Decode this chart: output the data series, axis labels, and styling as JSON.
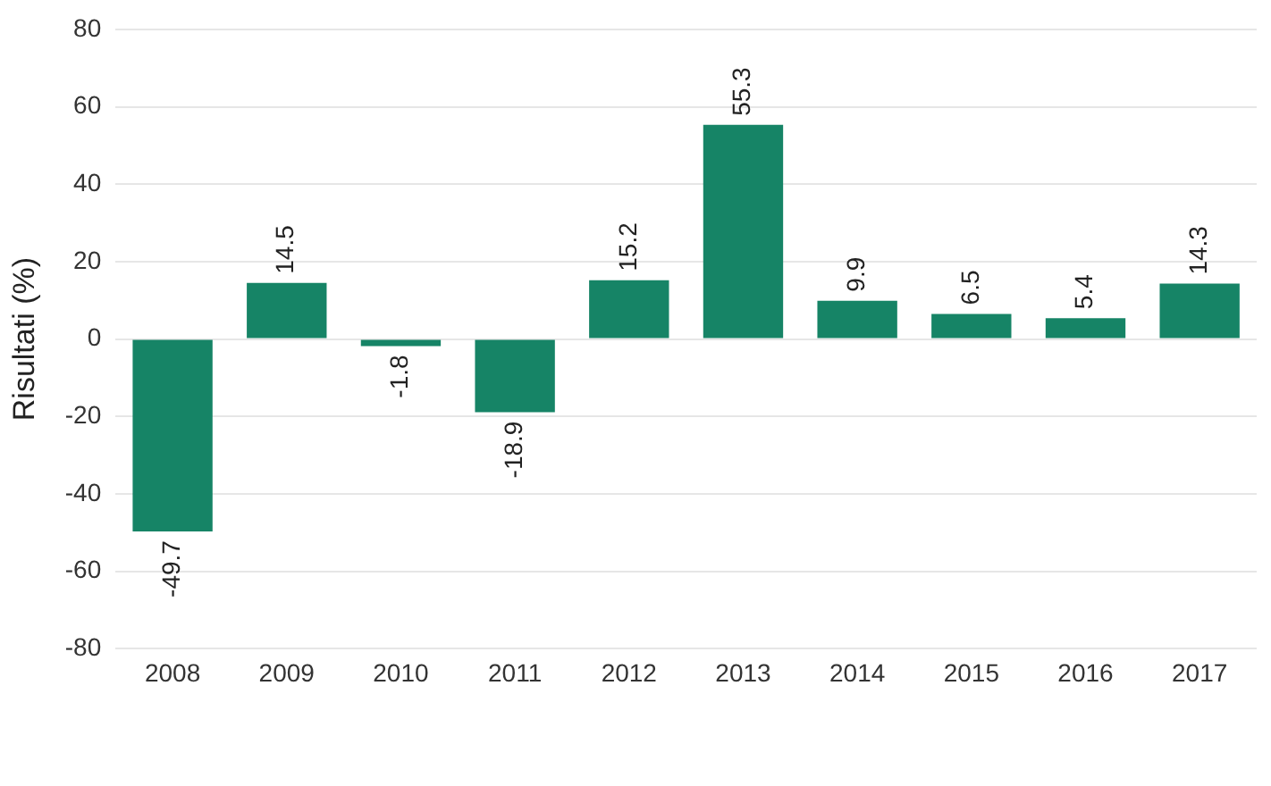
{
  "chart_data": {
    "type": "bar",
    "ylabel": "Risultati (%)",
    "categories": [
      "2008",
      "2009",
      "2010",
      "2011",
      "2012",
      "2013",
      "2014",
      "2015",
      "2016",
      "2017"
    ],
    "values": [
      -49.7,
      14.5,
      -1.8,
      -18.9,
      15.2,
      55.3,
      9.9,
      6.5,
      5.4,
      14.3
    ],
    "color": "#168466",
    "ylim": [
      -80,
      80
    ],
    "yticks": [
      -80,
      -60,
      -40,
      -20,
      0,
      20,
      40,
      60,
      80
    ],
    "grid": "y",
    "data_labels": true
  }
}
